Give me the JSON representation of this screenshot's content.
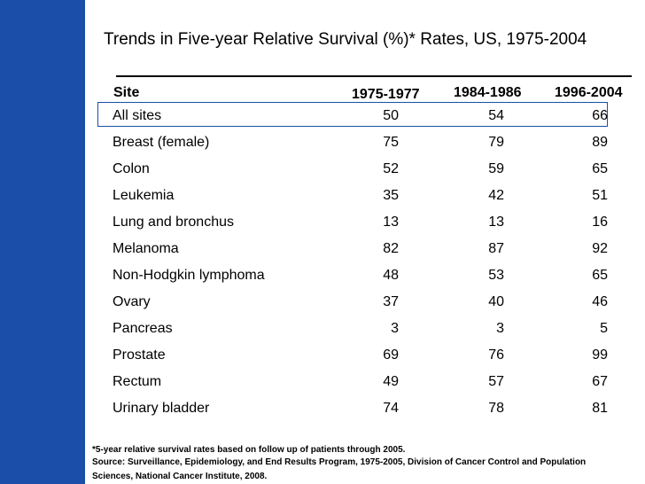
{
  "title": "Trends in Five-year Relative Survival (%)* Rates, US, 1975-2004",
  "table": {
    "headers": {
      "site": "Site",
      "period1": "1975-1977",
      "period2": "1984-1986",
      "period3": "1996-2004"
    },
    "rows": [
      {
        "site": "All sites",
        "period1": "50",
        "period2": "54",
        "period3": "66"
      },
      {
        "site": "Breast (female)",
        "period1": "75",
        "period2": "79",
        "period3": "89"
      },
      {
        "site": "Colon",
        "period1": "52",
        "period2": "59",
        "period3": "65"
      },
      {
        "site": "Leukemia",
        "period1": "35",
        "period2": "42",
        "period3": "51"
      },
      {
        "site": "Lung and bronchus",
        "period1": "13",
        "period2": "13",
        "period3": "16"
      },
      {
        "site": "Melanoma",
        "period1": "82",
        "period2": "87",
        "period3": "92"
      },
      {
        "site": "Non-Hodgkin lymphoma",
        "period1": "48",
        "period2": "53",
        "period3": "65"
      },
      {
        "site": "Ovary",
        "period1": "37",
        "period2": "40",
        "period3": "46"
      },
      {
        "site": "Pancreas",
        "period1": "3",
        "period2": "3",
        "period3": "5"
      },
      {
        "site": "Prostate",
        "period1": "69",
        "period2": "76",
        "period3": "99"
      },
      {
        "site": "Rectum",
        "period1": "49",
        "period2": "57",
        "period3": "67"
      },
      {
        "site": "Urinary bladder",
        "period1": "74",
        "period2": "78",
        "period3": "81"
      }
    ]
  },
  "footnote": {
    "note": "*5-year relative survival rates based on follow up of patients through 2005.",
    "source": "Source: Surveillance, Epidemiology, and End Results Program, 1975-2005, Division of Cancer Control and Population Sciences, National Cancer Institute, 2008."
  },
  "colors": {
    "accent_bar": "#1a4ea8",
    "highlight_border": "#1a4ea8"
  }
}
